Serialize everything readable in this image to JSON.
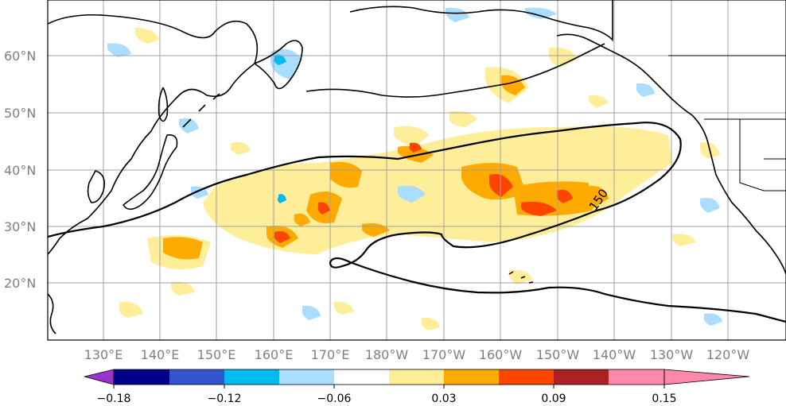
{
  "map": {
    "lat_labels": [
      "60°N",
      "50°N",
      "40°N",
      "30°N",
      "20°N"
    ],
    "lon_labels": [
      "130°E",
      "140°E",
      "150°E",
      "160°E",
      "170°E",
      "180°W",
      "170°W",
      "160°W",
      "150°W",
      "140°W",
      "130°W",
      "120°W"
    ],
    "contour_label": "150",
    "grid_color": "#a0a0a0",
    "coast_color": "#000000"
  },
  "colorbar": {
    "colors": [
      "#9933cc",
      "#000088",
      "#3355cc",
      "#00bbee",
      "#aaddff",
      "#ffffff",
      "#ffee99",
      "#ffaa00",
      "#ff4400",
      "#aa2222",
      "#ff88aa"
    ],
    "tick_labels": [
      "−0.18",
      "−0.12",
      "−0.06",
      "0.03",
      "0.09",
      "0.15"
    ]
  }
}
